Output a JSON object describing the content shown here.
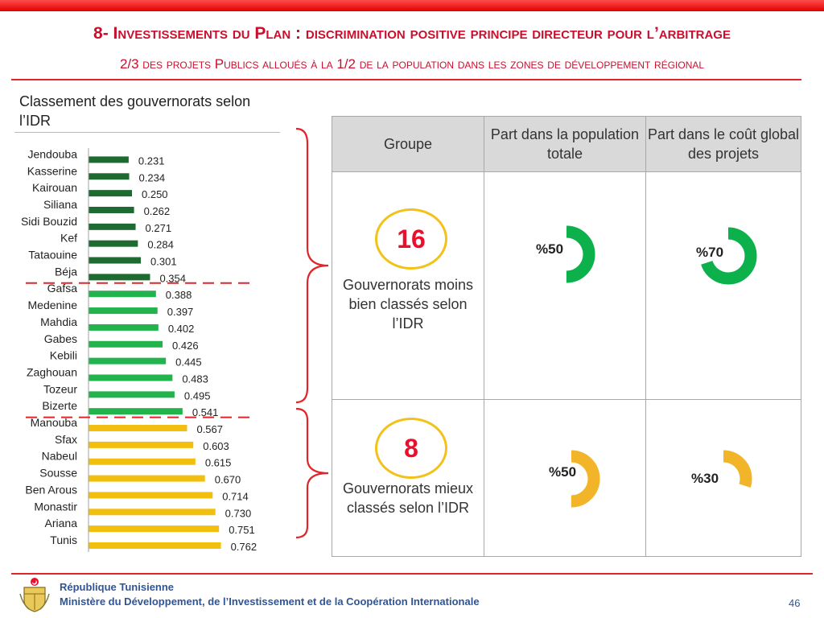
{
  "header": {
    "title": "8- Investissements du Plan : discrimination positive principe directeur pour l’arbitrage",
    "subtitle": "2/3 des projets Publics alloués à la 1/2 de la population dans les zones de développement régional"
  },
  "chart_data": {
    "type": "bar",
    "orientation": "horizontal",
    "title": "Classement des gouvernorats selon l’IDR",
    "categories": [
      "Jendouba",
      "Kasserine",
      "Kairouan",
      "Siliana",
      "Sidi Bouzid",
      "Kef",
      "Tataouine",
      "Béja",
      "Gafsa",
      "Medenine",
      "Mahdia",
      "Gabes",
      "Kebili",
      "Zaghouan",
      "Tozeur",
      "Bizerte",
      "Manouba",
      "Sfax",
      "Nabeul",
      "Sousse",
      "Ben Arous",
      "Monastir",
      "Ariana",
      "Tunis"
    ],
    "values": [
      0.231,
      0.234,
      0.25,
      0.262,
      0.271,
      0.284,
      0.301,
      0.354,
      0.388,
      0.397,
      0.402,
      0.426,
      0.445,
      0.483,
      0.495,
      0.541,
      0.567,
      0.603,
      0.615,
      0.67,
      0.714,
      0.73,
      0.751,
      0.762
    ],
    "value_labels": [
      "0.231",
      "0.234",
      "0.250",
      "0.262",
      "0.271",
      "0.284",
      "0.301",
      "0.354",
      "0.388",
      "0.397",
      "0.402",
      "0.426",
      "0.445",
      "0.483",
      "0.495",
      "0.541",
      "0.567",
      "0.603",
      "0.615",
      "0.670",
      "0.714",
      "0.730",
      "0.751",
      "0.762"
    ],
    "groups": [
      {
        "name": "dark-green",
        "color": "#1e6b32",
        "count": 8
      },
      {
        "name": "green",
        "color": "#22b34c",
        "count": 8
      },
      {
        "name": "yellow",
        "color": "#f2bf0e",
        "count": 8
      }
    ],
    "separators_after_index": [
      7,
      15
    ],
    "xlim": [
      0,
      0.762
    ]
  },
  "table": {
    "headers": [
      "Groupe",
      "Part dans la population totale",
      "Part dans le coût global des projets"
    ],
    "rows": [
      {
        "count": "16",
        "label": "Gouvernorats moins bien classés selon l’IDR",
        "population_label": "%50",
        "population_value": 50,
        "cost_label": "%70",
        "cost_value": 70,
        "color": "#0db14b"
      },
      {
        "count": "8",
        "label": "Gouvernorats mieux classés selon l’IDR",
        "population_label": "%50",
        "population_value": 50,
        "cost_label": "%30",
        "cost_value": 30,
        "color": "#f2b428"
      }
    ]
  },
  "footer": {
    "line1": "République Tunisienne",
    "line2": "Ministère du Développement, de l’Investissement et de la Coopération Internationale",
    "page": "46"
  },
  "colors": {
    "accent": "#c8102e",
    "footer_text": "#2f5597",
    "separator": "#e0262b"
  }
}
